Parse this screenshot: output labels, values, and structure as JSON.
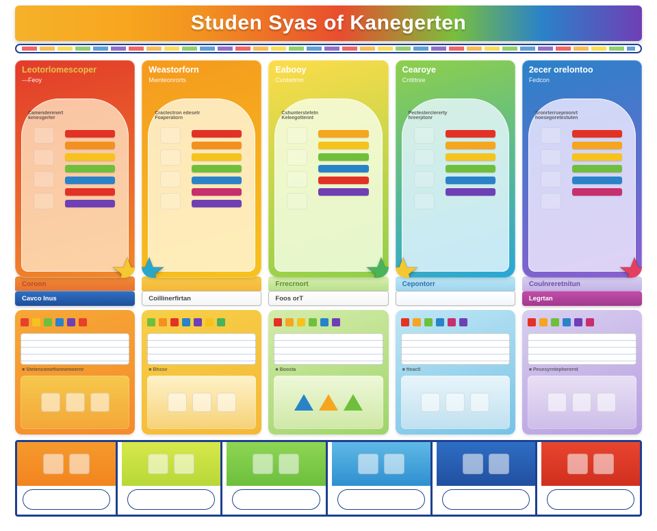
{
  "header": {
    "title": "Studen Syas of Kanegerten",
    "title_color": "#ffffff",
    "band_gradient": [
      "#f6b12a",
      "#f7a61e",
      "#f29120",
      "#e84d2e",
      "#7abf3c",
      "#2a82c9",
      "#6f3fb5"
    ],
    "rule_border": "#1e3f8f"
  },
  "columns": [
    {
      "title": "Leotorlomescoper",
      "subtitle": "—Feoy",
      "caption": "Camenderenert\nkenesgerter",
      "title_color": "#e6c04b",
      "bg_gradient": [
        "#e23b2a",
        "#f08a2c"
      ],
      "arch_tint": "rgba(255,232,200,.78)",
      "bars": [
        "#e33126",
        "#f29120",
        "#f6c21e",
        "#6fbf3c",
        "#2a82c9",
        "#e33126",
        "#6f3fb5"
      ],
      "icons": [
        "sun",
        "frame",
        "stack",
        "chart"
      ],
      "star": {
        "color": "#f5c731",
        "pos": "right"
      }
    },
    {
      "title": "Weastorforn",
      "subtitle": "Mwnteonrorts",
      "caption": "Cractectron edesetr\nFoaperatorn",
      "title_color": "#ffffff",
      "bg_gradient": [
        "#f59a1e",
        "#f6c21e"
      ],
      "arch_tint": "rgba(255,246,220,.82)",
      "bars": [
        "#e33126",
        "#f29120",
        "#f6c21e",
        "#6fbf3c",
        "#2a82c9",
        "#c72f6d",
        "#6f3fb5"
      ],
      "icons": [
        "bag",
        "books",
        "crayons",
        "jar"
      ],
      "star": {
        "color": "#2aa6c9",
        "pos": "left"
      }
    },
    {
      "title": "Eabooy",
      "subtitle": "Cvobetrnn",
      "caption": "Cshunterstefetn\nKeleegottennt",
      "title_color": "#ffffff",
      "bg_gradient": [
        "#fddc4a",
        "#8ecf4a"
      ],
      "arch_tint": "rgba(246,255,232,.82)",
      "bars": [
        "#f6a51e",
        "#f6c21e",
        "#6fbf3c",
        "#2a82c9",
        "#e33126",
        "#6f3fb5"
      ],
      "icons": [
        "books",
        "mug",
        "leaf",
        "pencils"
      ],
      "star": {
        "color": "#49b35a",
        "pos": "right"
      }
    },
    {
      "title": "Cearoye",
      "subtitle": "Cntittree",
      "caption": "Pectesterclererty\nhreerptonr",
      "title_color": "#ffffff",
      "bg_gradient": [
        "#8ecf4a",
        "#2aa6d6"
      ],
      "arch_tint": "rgba(232,248,255,.82)",
      "bars": [
        "#e33126",
        "#f6a51e",
        "#f6c21e",
        "#6fbf3c",
        "#2a82c9",
        "#6f3fb5"
      ],
      "icons": [
        "flag",
        "ruler",
        "blocks",
        "paint"
      ],
      "star": {
        "color": "#f5c731",
        "pos": "left"
      }
    },
    {
      "title": "2ecer orelontoo",
      "subtitle": "Fedcon",
      "caption": "Sronrterrsepnionrt\nhoesegoretestuten",
      "title_color": "#ffffff",
      "bg_gradient": [
        "#2a82c9",
        "#8a5fcf"
      ],
      "arch_tint": "rgba(240,236,255,.82)",
      "bars": [
        "#e33126",
        "#f6a51e",
        "#f6c21e",
        "#6fbf3c",
        "#2a82c9",
        "#c72f6d"
      ],
      "icons": [
        "triangle",
        "card",
        "card",
        "tablet"
      ],
      "star": {
        "color": "#e33f60",
        "pos": "right"
      }
    }
  ],
  "mid_labels": [
    {
      "text": "Coroon",
      "color": "#b94a2d",
      "bg": "linear-gradient(180deg,#ef8a36,#e9722f)"
    },
    {
      "text": "",
      "color": "#b07616",
      "bg": "linear-gradient(180deg,#f7c84a,#f5b836)"
    },
    {
      "text": "Frrecrnort",
      "color": "#5a8f2f",
      "bg": "linear-gradient(180deg,#d9efb2,#b9e08a)"
    },
    {
      "text": "Cepontorr",
      "color": "#2f6fab",
      "bg": "linear-gradient(180deg,#bee6f5,#9ed6ef)"
    },
    {
      "text": "Coulnreretnitun",
      "color": "#6f4aa8",
      "bg": "linear-gradient(180deg,#d8cff0,#c3b4e6)"
    }
  ],
  "buttons": [
    {
      "label": "Cavco Inus",
      "bg": "linear-gradient(#2f71c4,#1e4f9a)",
      "text": "#ffffff"
    },
    {
      "label": "Coillinerfirtan",
      "outline": true
    },
    {
      "label": "Foos orT",
      "outline": true
    },
    {
      "label": "",
      "bg": "linear-gradient(#fff,#f2f6fb)",
      "text": "#6a83ad",
      "outline": true
    },
    {
      "label": "Legrtan",
      "bg": "linear-gradient(#c14fa8,#a4398f)",
      "text": "#ffffff"
    }
  ],
  "panels": [
    {
      "bg": "linear-gradient(160deg,#f6a836,#f58a2c)",
      "shapes": [
        "#e7412a",
        "#f6c21e",
        "#6fbf3c",
        "#2a82c9",
        "#6f3fb5",
        "#e7412a"
      ],
      "note": "Stetencomefionnemeernr",
      "desk_bg": "linear-gradient(#f6c84c,#f4a738)"
    },
    {
      "bg": "linear-gradient(160deg,#f7cf48,#f5b836)",
      "shapes": [
        "#6fbf3c",
        "#f29120",
        "#e33126",
        "#2a82c9",
        "#6f3fb5",
        "#f6c21e",
        "#49b35a"
      ],
      "note": "Bhssv",
      "desk_bg": "linear-gradient(#fff2c9,#f6d277)"
    },
    {
      "bg": "linear-gradient(160deg,#d4ecaa,#9fd46a)",
      "shapes": [
        "#e33126",
        "#f6a51e",
        "#f6c21e",
        "#6fbf3c",
        "#2a82c9",
        "#6f3fb5"
      ],
      "note": "Boosta",
      "desk_bg": "linear-gradient(#eef8d9,#cfe8a6)",
      "triangles": [
        "#2a82c9",
        "#f6a51e",
        "#6fbf3c"
      ]
    },
    {
      "bg": "linear-gradient(160deg,#bfe6f5,#76c3e6)",
      "shapes": [
        "#e33126",
        "#f6a51e",
        "#6fbf3c",
        "#2a82c9",
        "#c72f6d",
        "#6f3fb5"
      ],
      "note": "fteactl",
      "desk_bg": "linear-gradient(#e8f5fb,#bfe0ef)"
    },
    {
      "bg": "linear-gradient(160deg,#d8cff0,#b79ee0)",
      "shapes": [
        "#e33126",
        "#f6a51e",
        "#6fbf3c",
        "#2a82c9",
        "#6f3fb5",
        "#c72f6d"
      ],
      "note": "Pesesyrntepherernt",
      "desk_bg": "linear-gradient(#e8e0f5,#cdbde8)"
    }
  ],
  "footer_tiles": [
    {
      "top_bg": "linear-gradient(#f59a2d,#f3841f)"
    },
    {
      "top_bg": "linear-gradient(#d7e84a,#b7d838)"
    },
    {
      "top_bg": "linear-gradient(#8ed653,#6cbf3e)"
    },
    {
      "top_bg": "linear-gradient(#5fb9e6,#2f8fd0)"
    },
    {
      "top_bg": "linear-gradient(#2e6ec4,#214fa0)"
    },
    {
      "top_bg": "linear-gradient(#e8452f,#d12f1f)"
    }
  ],
  "footer_border": "#1e3f8f"
}
